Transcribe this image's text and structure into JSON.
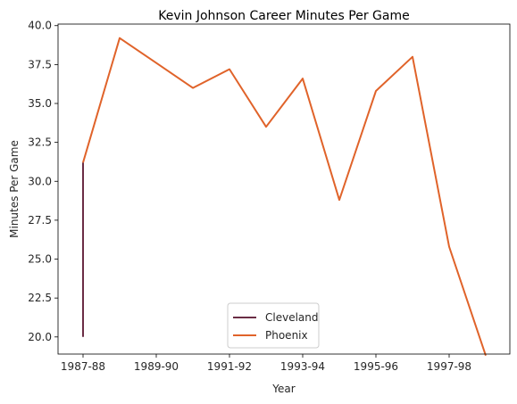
{
  "chart_data": {
    "type": "line",
    "title": "Kevin Johnson Career Minutes Per Game",
    "xlabel": "Year",
    "ylabel": "Minutes Per Game",
    "x": [
      "1987-88",
      "1988-89",
      "1989-90",
      "1990-91",
      "1991-92",
      "1992-93",
      "1993-94",
      "1994-95",
      "1995-96",
      "1996-97",
      "1997-98",
      "1998-99"
    ],
    "xtick_labels": [
      "1987-88",
      "1989-90",
      "1991-92",
      "1993-94",
      "1995-96",
      "1997-98"
    ],
    "yticks": [
      20.0,
      22.5,
      25.0,
      27.5,
      30.0,
      32.5,
      35.0,
      37.5,
      40.0
    ],
    "ytick_labels": [
      "20.0",
      "22.5",
      "25.0",
      "27.5",
      "30.0",
      "32.5",
      "35.0",
      "37.5",
      "40.0"
    ],
    "ylim": [
      18.9,
      40.1
    ],
    "grid": false,
    "legend_position": "bottom-center",
    "series": [
      {
        "name": "Cleveland",
        "color": "#6b2d45",
        "points": [
          {
            "x": "1987-88",
            "y": 20.0
          },
          {
            "x": "1987-88",
            "y": 31.2
          }
        ]
      },
      {
        "name": "Phoenix",
        "color": "#e0632a",
        "points": [
          {
            "x": "1987-88",
            "y": 31.2
          },
          {
            "x": "1988-89",
            "y": 39.2
          },
          {
            "x": "1989-90",
            "y": 37.6
          },
          {
            "x": "1990-91",
            "y": 36.0
          },
          {
            "x": "1991-92",
            "y": 37.2
          },
          {
            "x": "1992-93",
            "y": 33.5
          },
          {
            "x": "1993-94",
            "y": 36.6
          },
          {
            "x": "1994-95",
            "y": 28.8
          },
          {
            "x": "1995-96",
            "y": 35.8
          },
          {
            "x": "1996-97",
            "y": 38.0
          },
          {
            "x": "1997-98",
            "y": 25.8
          },
          {
            "x": "1998-99",
            "y": 18.8
          }
        ]
      }
    ]
  }
}
